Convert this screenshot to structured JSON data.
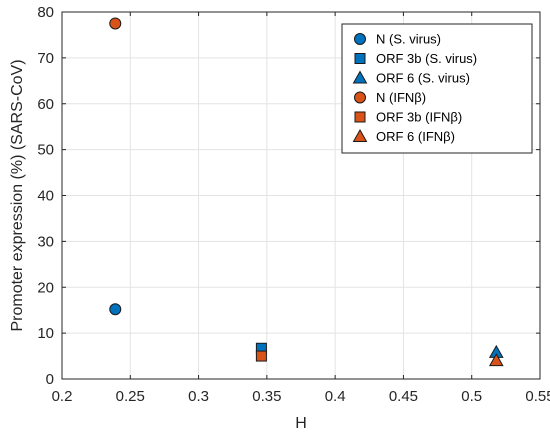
{
  "chart_data": {
    "type": "scatter",
    "title": "",
    "xlabel": "H",
    "ylabel": "Promoter expression (%) (SARS-CoV)",
    "xlim": [
      0.2,
      0.55
    ],
    "ylim": [
      0,
      80
    ],
    "xticks": [
      0.2,
      0.25,
      0.3,
      0.35,
      0.4,
      0.45,
      0.5,
      0.55
    ],
    "yticks": [
      0,
      10,
      20,
      30,
      40,
      50,
      60,
      70,
      80
    ],
    "xtick_labels": [
      "0.2",
      "0.25",
      "0.3",
      "0.35",
      "0.4",
      "0.45",
      "0.5",
      "0.55"
    ],
    "ytick_labels": [
      "0",
      "10",
      "20",
      "30",
      "40",
      "50",
      "60",
      "70",
      "80"
    ],
    "grid": true,
    "legend_position": "top-right",
    "series": [
      {
        "name": "N (S. virus)",
        "marker": "circle",
        "color": "#0072BD",
        "x": [
          0.239
        ],
        "y": [
          15.2
        ]
      },
      {
        "name": "ORF 3b (S. virus)",
        "marker": "square",
        "color": "#0072BD",
        "x": [
          0.346
        ],
        "y": [
          6.7
        ]
      },
      {
        "name": "ORF 6 (S. virus)",
        "marker": "triangle",
        "color": "#0072BD",
        "x": [
          0.518
        ],
        "y": [
          5.8
        ]
      },
      {
        "name": "N (IFNβ)",
        "marker": "circle",
        "color": "#D95319",
        "x": [
          0.239
        ],
        "y": [
          77.5
        ]
      },
      {
        "name": "ORF 3b (IFNβ)",
        "marker": "square",
        "color": "#D95319",
        "x": [
          0.346
        ],
        "y": [
          5.0
        ]
      },
      {
        "name": "ORF 6 (IFNβ)",
        "marker": "triangle",
        "color": "#D95319",
        "x": [
          0.518
        ],
        "y": [
          4.0
        ]
      }
    ]
  }
}
